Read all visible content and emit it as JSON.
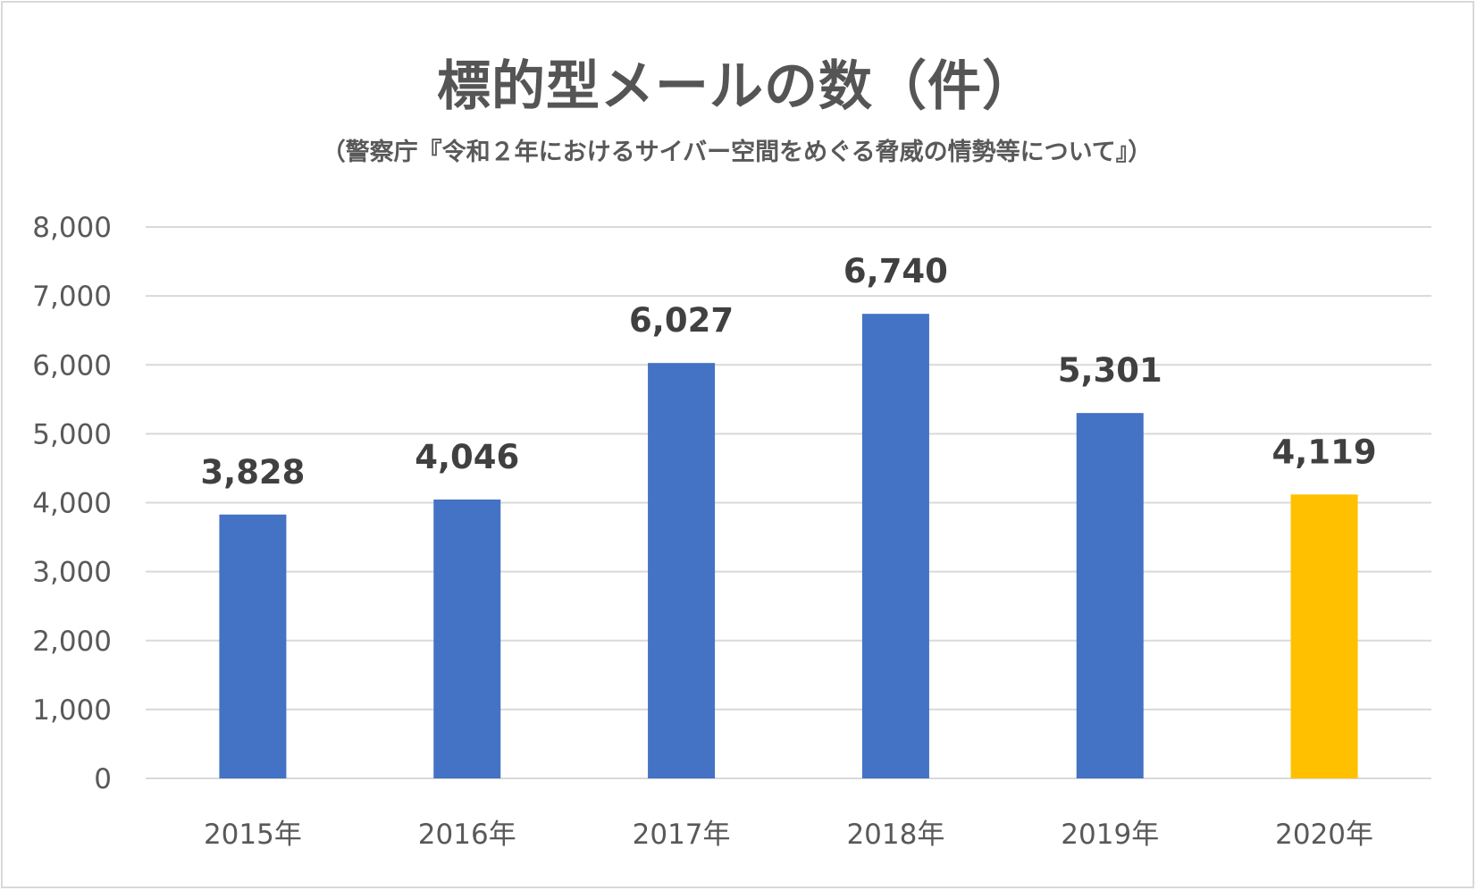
{
  "chart_data": {
    "type": "bar",
    "title": "標的型メールの数（件）",
    "subtitle": "（警察庁『令和２年におけるサイバー空間をめぐる脅威の情勢等について』）",
    "categories": [
      "2015年",
      "2016年",
      "2017年",
      "2018年",
      "2019年",
      "2020年"
    ],
    "values": [
      3828,
      4046,
      6027,
      6740,
      5301,
      4119
    ],
    "value_labels": [
      "3,828",
      "4,046",
      "6,027",
      "6,740",
      "5,301",
      "4,119"
    ],
    "bar_colors": [
      "#4472c4",
      "#4472c4",
      "#4472c4",
      "#4472c4",
      "#4472c4",
      "#ffc000"
    ],
    "ylim": [
      0,
      8000
    ],
    "yticks": [
      0,
      1000,
      2000,
      3000,
      4000,
      5000,
      6000,
      7000,
      8000
    ],
    "ytick_labels": [
      "0",
      "1,000",
      "2,000",
      "3,000",
      "4,000",
      "5,000",
      "6,000",
      "7,000",
      "8,000"
    ],
    "gridlines": true,
    "gridline_color": "#d9d9d9",
    "xlabel": "",
    "ylabel": "",
    "legend": "none"
  }
}
